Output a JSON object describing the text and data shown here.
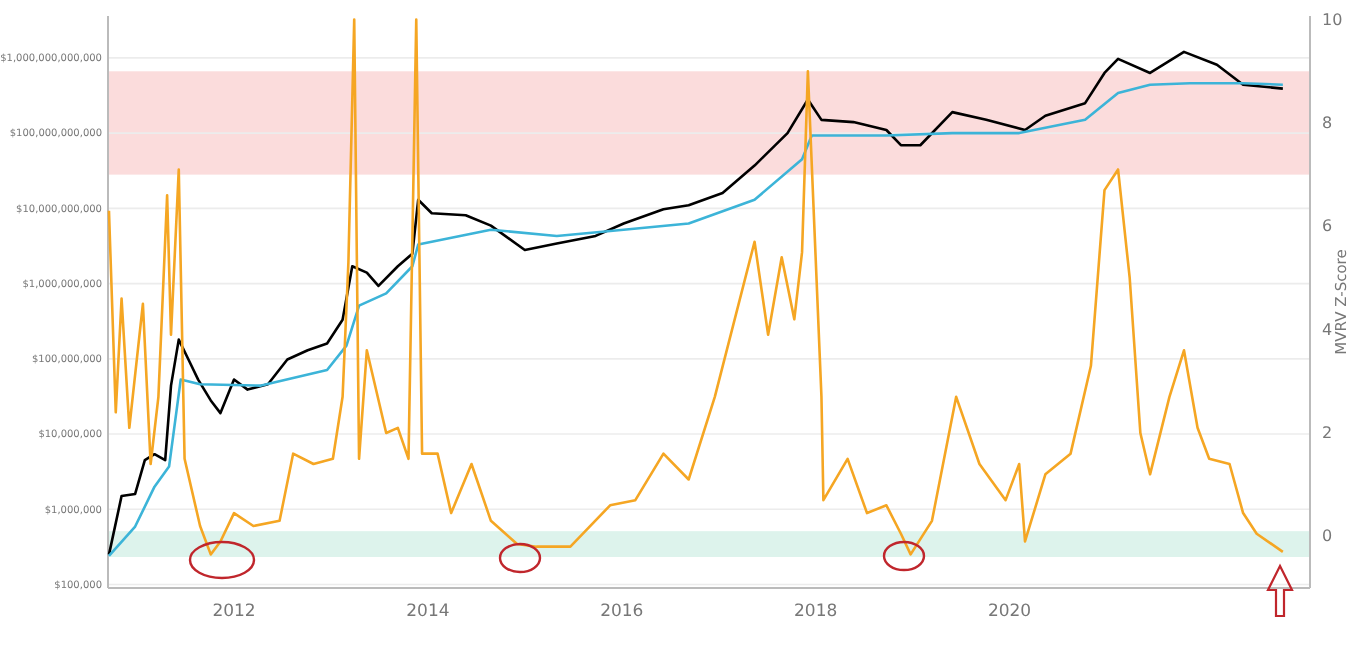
{
  "chart_data": {
    "type": "line",
    "y2label": "MVRV Z-Score",
    "grid": "y",
    "log": "y",
    "xlim": [
      2010.7,
      2023.1
    ],
    "xticks": [
      2012,
      2014,
      2016,
      2018,
      2020
    ],
    "ylim": [
      90000,
      3600000000000
    ],
    "yticks": [
      {
        "value": 100000,
        "label": "$100,000"
      },
      {
        "value": 1000000,
        "label": "$1,000,000"
      },
      {
        "value": 10000000,
        "label": "$10,000,000"
      },
      {
        "value": 100000000,
        "label": "$100,000,000"
      },
      {
        "value": 1000000000,
        "label": "$1,000,000,000"
      },
      {
        "value": 10000000000,
        "label": "$10,000,000,000"
      },
      {
        "value": 100000000000,
        "label": "$100,000,000,000"
      },
      {
        "value": 1000000000000,
        "label": "$1,000,000,000,000"
      }
    ],
    "y2lim": [
      -1,
      10.07
    ],
    "y2ticks": [
      0,
      2,
      4,
      6,
      8,
      10
    ],
    "bands": [
      {
        "axis": "y2",
        "from": 7,
        "to": 9,
        "color": "#fbdcdc"
      },
      {
        "axis": "y2",
        "from": -0.4,
        "to": 0.1,
        "color": "#ddf3ec"
      }
    ],
    "series": [
      {
        "color": "#000000",
        "x": [
          2010.71,
          2010.84,
          2010.98,
          2011.08,
          2011.18,
          2011.29,
          2011.35,
          2011.43,
          2011.53,
          2011.63,
          2011.76,
          2011.86,
          2012.0,
          2012.14,
          2012.35,
          2012.55,
          2012.76,
          2012.96,
          2013.12,
          2013.22,
          2013.37,
          2013.49,
          2013.69,
          2013.84,
          2013.9,
          2014.04,
          2014.39,
          2014.65,
          2015.0,
          2015.33,
          2015.73,
          2016.02,
          2016.43,
          2016.69,
          2017.04,
          2017.37,
          2017.71,
          2017.92,
          2018.06,
          2018.39,
          2018.73,
          2018.88,
          2019.08,
          2019.41,
          2019.76,
          2020.16,
          2020.37,
          2020.78,
          2020.98,
          2021.12,
          2021.45,
          2021.8,
          2022.14,
          2022.41,
          2022.82
        ],
        "values": [
          250000,
          1500000,
          1600000,
          4500000,
          5400000,
          4500000,
          44000000,
          180000000,
          98000000,
          53000000,
          28000000,
          19000000,
          53000000,
          39000000,
          46000000,
          98000000,
          130000000,
          160000000,
          330000000,
          1700000000,
          1400000000,
          930000000,
          1700000000,
          2500000000,
          13000000000,
          8600000000,
          8100000000,
          5900000000,
          2800000000,
          3400000000,
          4300000000,
          6300000000,
          9700000000,
          11000000000,
          16000000000,
          37000000000,
          100000000000,
          280000000000,
          150000000000,
          140000000000,
          110000000000,
          69000000000,
          69000000000,
          190000000000,
          150000000000,
          110000000000,
          170000000000,
          250000000000,
          630000000000,
          970000000000,
          630000000000,
          1200000000000,
          810000000000,
          440000000000,
          390000000000
        ]
      },
      {
        "color": "#3cb4d8",
        "x": [
          2010.71,
          2010.98,
          2011.18,
          2011.33,
          2011.45,
          2011.65,
          2012.27,
          2012.96,
          2013.16,
          2013.29,
          2013.57,
          2013.84,
          2013.9,
          2014.65,
          2015.33,
          2016.02,
          2016.69,
          2017.37,
          2017.86,
          2017.96,
          2018.73,
          2019.41,
          2020.1,
          2020.78,
          2021.12,
          2021.45,
          2021.86,
          2022.41,
          2022.82
        ],
        "values": [
          240000,
          590000,
          2000000,
          3700000,
          53000000,
          46000000,
          44000000,
          71000000,
          150000000,
          510000000,
          740000000,
          1700000000,
          3300000000,
          5200000000,
          4300000000,
          5200000000,
          6300000000,
          13000000000,
          45000000000,
          93000000000,
          93000000000,
          100000000000,
          100000000000,
          150000000000,
          340000000000,
          440000000000,
          460000000000,
          460000000000,
          440000000000
        ]
      },
      {
        "color": "#f5a623",
        "axis": "y2",
        "x": [
          2010.71,
          2010.78,
          2010.84,
          2010.92,
          2011.06,
          2011.14,
          2011.22,
          2011.31,
          2011.35,
          2011.43,
          2011.49,
          2011.65,
          2011.76,
          2011.86,
          2012.0,
          2012.2,
          2012.47,
          2012.61,
          2012.82,
          2013.02,
          2013.12,
          2013.18,
          2013.24,
          2013.29,
          2013.37,
          2013.57,
          2013.69,
          2013.8,
          2013.88,
          2013.94,
          2014.1,
          2014.24,
          2014.45,
          2014.65,
          2014.92,
          2015.12,
          2015.47,
          2015.88,
          2016.14,
          2016.43,
          2016.69,
          2016.96,
          2017.37,
          2017.51,
          2017.65,
          2017.78,
          2017.86,
          2017.92,
          2018.06,
          2018.08,
          2018.33,
          2018.53,
          2018.73,
          2018.88,
          2018.98,
          2019.2,
          2019.45,
          2019.69,
          2019.96,
          2020.1,
          2020.16,
          2020.37,
          2020.63,
          2020.84,
          2020.98,
          2021.12,
          2021.24,
          2021.35,
          2021.45,
          2021.65,
          2021.8,
          2021.94,
          2022.06,
          2022.27,
          2022.41,
          2022.55,
          2022.82
        ],
        "values": [
          6.3,
          2.4,
          4.6,
          2.1,
          4.5,
          1.4,
          2.7,
          6.6,
          3.9,
          7.1,
          1.5,
          0.2,
          -0.35,
          -0.1,
          0.45,
          0.2,
          0.3,
          1.6,
          1.4,
          1.5,
          2.7,
          5.3,
          10.0,
          1.5,
          3.6,
          2.0,
          2.1,
          1.5,
          10.0,
          1.6,
          1.6,
          0.45,
          1.4,
          0.3,
          -0.15,
          -0.2,
          -0.2,
          0.6,
          0.7,
          1.6,
          1.1,
          2.7,
          5.7,
          3.9,
          5.4,
          4.2,
          5.5,
          9.0,
          2.7,
          0.7,
          1.5,
          0.45,
          0.6,
          0.05,
          -0.35,
          0.3,
          2.7,
          1.4,
          0.7,
          1.4,
          -0.1,
          1.2,
          1.6,
          3.3,
          6.7,
          7.1,
          5.0,
          2.0,
          1.2,
          2.7,
          3.6,
          2.1,
          1.5,
          1.4,
          0.45,
          0.05,
          -0.3
        ]
      }
    ]
  }
}
